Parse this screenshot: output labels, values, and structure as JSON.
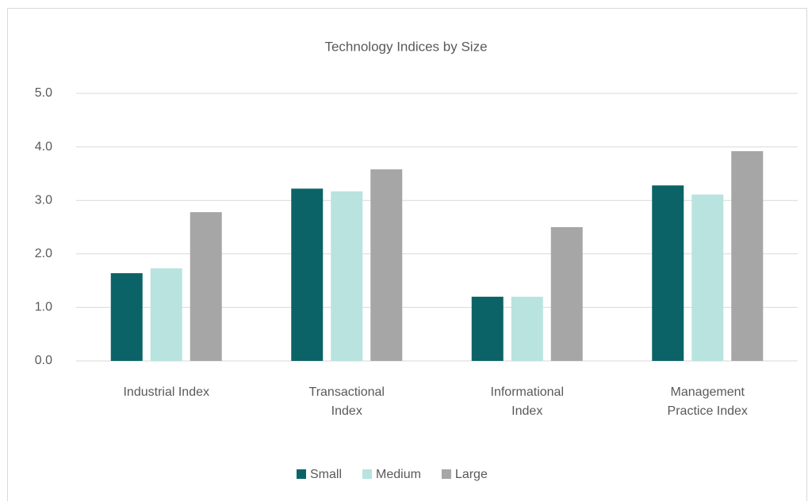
{
  "chart_data": {
    "type": "bar",
    "title": "Technology Indices by Size",
    "categories": [
      "Industrial Index",
      "Transactional Index",
      "Informational Index",
      "Management Practice Index"
    ],
    "series": [
      {
        "name": "Small",
        "color": "#0b6367",
        "values": [
          1.64,
          3.22,
          1.2,
          3.28
        ]
      },
      {
        "name": "Medium",
        "color": "#b9e3df",
        "values": [
          1.73,
          3.17,
          1.2,
          3.11
        ]
      },
      {
        "name": "Large",
        "color": "#a6a6a6",
        "values": [
          2.78,
          3.58,
          2.5,
          3.92
        ]
      }
    ],
    "ylim": [
      0,
      5
    ],
    "yticks": [
      {
        "value": 0,
        "label": "0.0"
      },
      {
        "value": 1,
        "label": "1.0"
      },
      {
        "value": 2,
        "label": "2.0"
      },
      {
        "value": 3,
        "label": "3.0"
      },
      {
        "value": 4,
        "label": "4.0"
      },
      {
        "value": 5,
        "label": "5.0"
      }
    ],
    "grid": true,
    "legend": "bottom"
  }
}
